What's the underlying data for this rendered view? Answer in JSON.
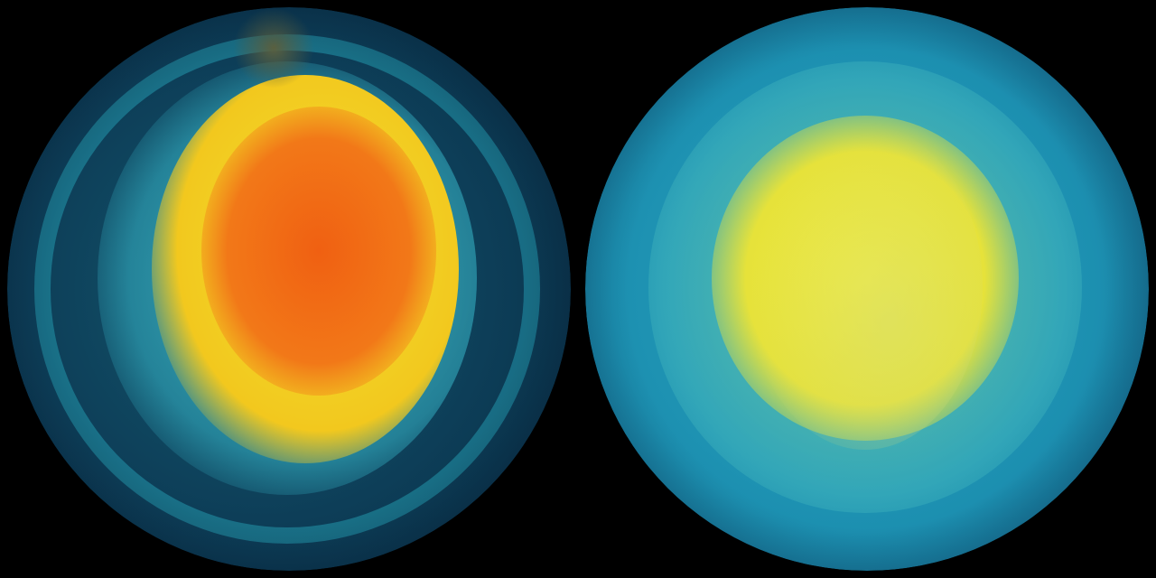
{
  "globes": [
    {
      "colors": {
        "ocean": "#0b3a52",
        "swirl": "#1ea5b8",
        "core_hot": "#f26a10",
        "core_warm": "#f5d21e",
        "edge": "#0a2438"
      }
    },
    {
      "colors": {
        "ocean": "#1a8fb0",
        "band": "#3fb8c2",
        "core": "#f0e83a",
        "land": "#b8c870",
        "edge": "#0f3a5a"
      }
    }
  ],
  "background": "#000000"
}
